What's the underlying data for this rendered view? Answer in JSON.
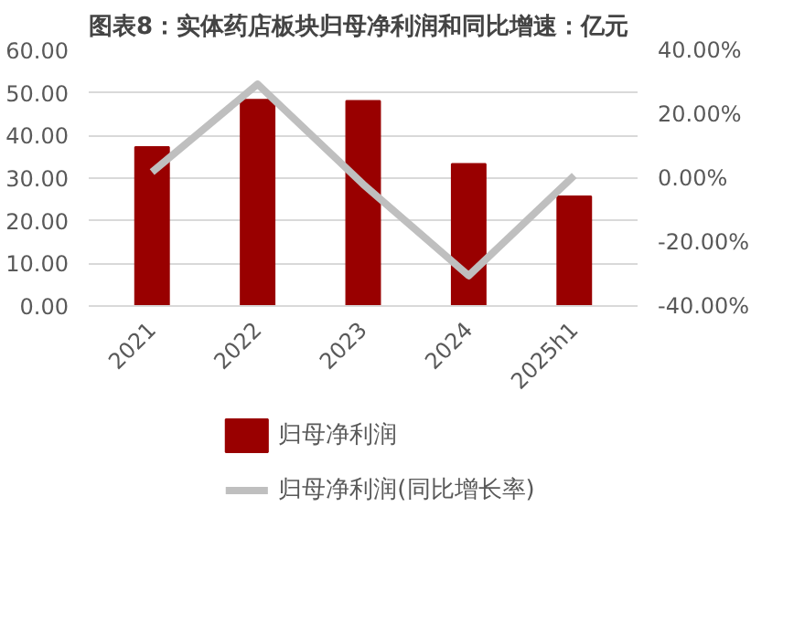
{
  "chart_data": {
    "type": "bar",
    "title": "图表8：实体药店板块归母净利润和同比增速：亿元",
    "categories": [
      "2021",
      "2022",
      "2023",
      "2024",
      "2025h1"
    ],
    "series": [
      {
        "name": "归母净利润",
        "color": "#990000",
        "values": [
          37.3,
          48.4,
          48.1,
          33.3,
          25.7
        ]
      },
      {
        "name": "归母净利润(同比增长率)",
        "type": "line",
        "axis": "y2",
        "color": "#bfbfbf",
        "values": [
          1.9,
          29.4,
          -1.9,
          -30.5,
          0.8
        ]
      }
    ],
    "ylim": [
      0,
      60
    ],
    "yticks": [
      {
        "value": 0,
        "label": "0.00"
      },
      {
        "value": 10,
        "label": "10.00"
      },
      {
        "value": 20,
        "label": "20.00"
      },
      {
        "value": 30,
        "label": "30.00"
      },
      {
        "value": 40,
        "label": "40.00"
      },
      {
        "value": 50,
        "label": "50.00"
      },
      {
        "value": 60,
        "label": "60.00"
      }
    ],
    "y2lim": [
      -40,
      40
    ],
    "y2ticks": [
      {
        "value": -40,
        "label": "-40.00%"
      },
      {
        "value": -20,
        "label": "-20.00%"
      },
      {
        "value": 0,
        "label": "0.00%"
      },
      {
        "value": 20,
        "label": "20.00%"
      },
      {
        "value": 40,
        "label": "40.00%"
      }
    ],
    "grid": "y",
    "legend": "bottom",
    "marker": "none",
    "line_style": "solid"
  }
}
